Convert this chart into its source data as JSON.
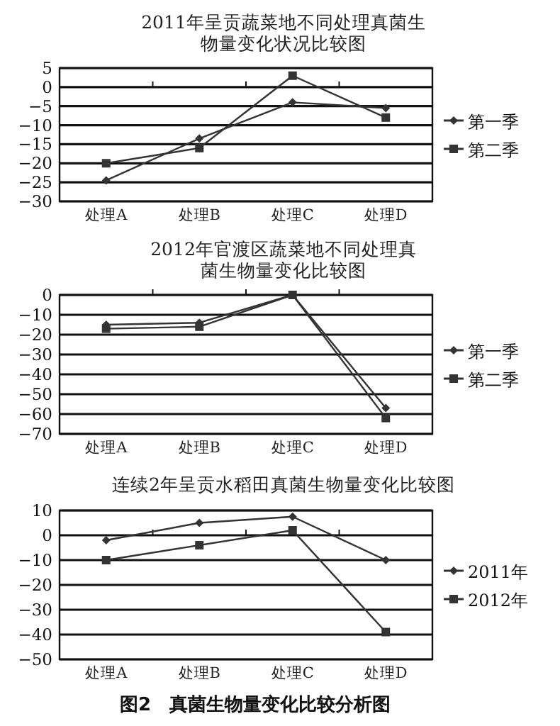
{
  "chart_data": [
    {
      "type": "line",
      "title": "2011年呈贡蔬菜地不同处理真菌生物量变化状况比较图",
      "categories": [
        "处理A",
        "处理B",
        "处理C",
        "处理D"
      ],
      "ylim": [
        -30,
        5
      ],
      "yticks": [
        5,
        0,
        -5,
        -10,
        -15,
        -20,
        -25,
        -30
      ],
      "grid": "y",
      "legend": "right",
      "series": [
        {
          "name": "第一季",
          "color": "#333333",
          "marker": "diamond",
          "values": [
            -24.5,
            -13.5,
            -4,
            -5.5
          ]
        },
        {
          "name": "第二季",
          "color": "#333333",
          "marker": "square",
          "values": [
            -20,
            -16,
            3,
            -8
          ]
        }
      ]
    },
    {
      "type": "line",
      "title": "2012年官渡区蔬菜地不同处理真菌生物量变化比较图",
      "categories": [
        "处理A",
        "处理B",
        "处理C",
        "处理D"
      ],
      "ylim": [
        -70,
        0
      ],
      "yticks": [
        0,
        -10,
        -20,
        -30,
        -40,
        -50,
        -60,
        -70
      ],
      "grid": "y",
      "legend": "right",
      "series": [
        {
          "name": "第一季",
          "color": "#333333",
          "marker": "diamond",
          "values": [
            -15,
            -14,
            0,
            -57
          ]
        },
        {
          "name": "第二季",
          "color": "#333333",
          "marker": "square",
          "values": [
            -17,
            -16,
            0,
            -62
          ]
        }
      ]
    },
    {
      "type": "line",
      "title": "连续2年呈贡水稻田真菌生物量变化比较图",
      "categories": [
        "处理A",
        "处理B",
        "处理C",
        "处理D"
      ],
      "ylim": [
        -50,
        10
      ],
      "yticks": [
        10,
        0,
        -10,
        -20,
        -30,
        -40,
        -50
      ],
      "grid": "y",
      "legend": "right",
      "annotations": [
        "图2　真菌生物量变化比较分析图"
      ],
      "series": [
        {
          "name": "2011年",
          "color": "#333333",
          "marker": "diamond",
          "values": [
            -2,
            5,
            7.5,
            -10
          ]
        },
        {
          "name": "2012年",
          "color": "#333333",
          "marker": "square",
          "values": [
            -10,
            -4,
            2,
            -39
          ]
        }
      ]
    }
  ]
}
